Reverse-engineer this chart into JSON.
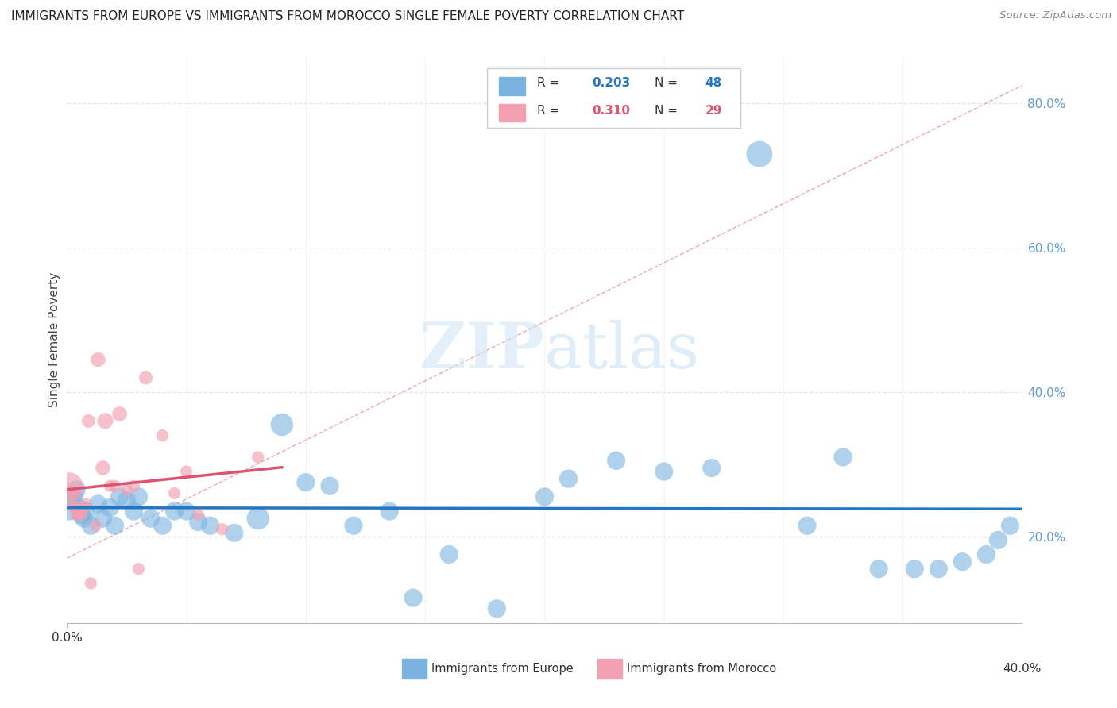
{
  "title": "IMMIGRANTS FROM EUROPE VS IMMIGRANTS FROM MOROCCO SINGLE FEMALE POVERTY CORRELATION CHART",
  "source": "Source: ZipAtlas.com",
  "ylabel": "Single Female Poverty",
  "ylabel_right_labels": [
    "80.0%",
    "60.0%",
    "40.0%",
    "20.0%"
  ],
  "ylabel_right_positions": [
    0.8,
    0.6,
    0.4,
    0.2
  ],
  "xlim": [
    0.0,
    0.4
  ],
  "ylim": [
    0.08,
    0.865
  ],
  "watermark_zip": "ZIP",
  "watermark_atlas": "atlas",
  "legend1_r": "0.203",
  "legend1_n": "48",
  "legend2_r": "0.310",
  "legend2_n": "29",
  "color_europe": "#7ab3e0",
  "color_morocco": "#f4a0b0",
  "color_trend_europe": "#2176c7",
  "color_trend_morocco": "#e05070",
  "color_diag": "#e8a0b0",
  "grid_color": "#dddddd",
  "europe_x": [
    0.001,
    0.002,
    0.003,
    0.004,
    0.005,
    0.006,
    0.007,
    0.008,
    0.01,
    0.013,
    0.015,
    0.018,
    0.02,
    0.022,
    0.025,
    0.028,
    0.03,
    0.035,
    0.04,
    0.045,
    0.05,
    0.055,
    0.06,
    0.07,
    0.08,
    0.09,
    0.1,
    0.11,
    0.12,
    0.135,
    0.145,
    0.16,
    0.18,
    0.2,
    0.21,
    0.23,
    0.25,
    0.27,
    0.29,
    0.31,
    0.325,
    0.34,
    0.355,
    0.365,
    0.375,
    0.385,
    0.39,
    0.395
  ],
  "europe_y": [
    0.235,
    0.255,
    0.255,
    0.265,
    0.24,
    0.23,
    0.225,
    0.235,
    0.215,
    0.245,
    0.225,
    0.24,
    0.215,
    0.255,
    0.25,
    0.235,
    0.255,
    0.225,
    0.215,
    0.235,
    0.235,
    0.22,
    0.215,
    0.205,
    0.225,
    0.355,
    0.275,
    0.27,
    0.215,
    0.235,
    0.115,
    0.175,
    0.1,
    0.255,
    0.28,
    0.305,
    0.29,
    0.295,
    0.73,
    0.215,
    0.31,
    0.155,
    0.155,
    0.155,
    0.165,
    0.175,
    0.195,
    0.215
  ],
  "europe_size": [
    10,
    10,
    10,
    10,
    10,
    10,
    10,
    10,
    10,
    10,
    10,
    10,
    10,
    10,
    10,
    10,
    10,
    10,
    10,
    10,
    10,
    10,
    10,
    10,
    15,
    15,
    10,
    10,
    10,
    10,
    10,
    10,
    10,
    10,
    10,
    10,
    10,
    10,
    20,
    10,
    10,
    10,
    10,
    10,
    10,
    10,
    10,
    10
  ],
  "morocco_x": [
    0.001,
    0.002,
    0.003,
    0.003,
    0.004,
    0.004,
    0.005,
    0.006,
    0.007,
    0.008,
    0.009,
    0.01,
    0.012,
    0.013,
    0.015,
    0.016,
    0.018,
    0.02,
    0.022,
    0.025,
    0.028,
    0.03,
    0.033,
    0.04,
    0.045,
    0.05,
    0.055,
    0.065,
    0.08
  ],
  "morocco_y": [
    0.27,
    0.245,
    0.26,
    0.24,
    0.23,
    0.235,
    0.235,
    0.23,
    0.24,
    0.245,
    0.36,
    0.135,
    0.215,
    0.445,
    0.295,
    0.36,
    0.27,
    0.27,
    0.37,
    0.265,
    0.27,
    0.155,
    0.42,
    0.34,
    0.26,
    0.29,
    0.23,
    0.21,
    0.31
  ],
  "morocco_size": [
    100,
    20,
    30,
    20,
    20,
    20,
    30,
    20,
    20,
    20,
    25,
    20,
    20,
    30,
    30,
    35,
    20,
    20,
    30,
    20,
    20,
    20,
    25,
    20,
    20,
    20,
    20,
    20,
    20
  ]
}
